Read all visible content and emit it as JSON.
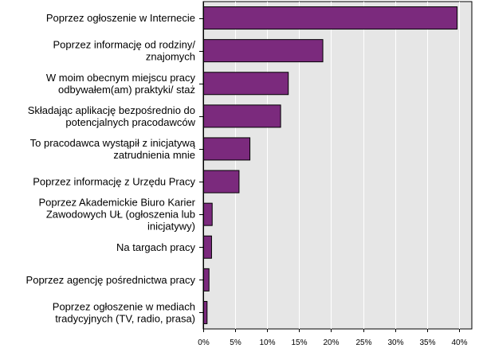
{
  "chart_data": {
    "type": "bar",
    "orientation": "horizontal",
    "categories": [
      [
        "Poprzez ogłoszenie w Internecie"
      ],
      [
        "Poprzez informację od rodziny/",
        "znajomych"
      ],
      [
        "W moim obecnym miejscu pracy",
        "odbywałem(am) praktyki/ staż"
      ],
      [
        "Składając aplikację bezpośrednio do",
        "potencjalnych pracodawców"
      ],
      [
        "To pracodawca wystąpił z inicjatywą",
        "zatrudnienia mnie"
      ],
      [
        "Poprzez informację z Urzędu Pracy"
      ],
      [
        "Poprzez Akademickie Biuro Karier",
        "Zawodowych UŁ (ogłoszenia lub",
        "inicjatywy)"
      ],
      [
        "Na targach pracy"
      ],
      [
        "Poprzez agencję pośrednictwa pracy"
      ],
      [
        "Poprzez ogłoszenie w mediach",
        "tradycyjnych (TV, radio, prasa)"
      ]
    ],
    "values": [
      39.7,
      18.7,
      13.3,
      12.1,
      7.3,
      5.6,
      1.4,
      1.3,
      0.9,
      0.6
    ],
    "xlim": [
      0,
      42
    ],
    "ticks": [
      0,
      5,
      10,
      15,
      20,
      25,
      30,
      35,
      40
    ],
    "tick_suffix": "%",
    "grid": true,
    "bar_color": "#7b2a7d",
    "plot_bg": "#e6e6e6",
    "grid_color": "#ffffff"
  }
}
